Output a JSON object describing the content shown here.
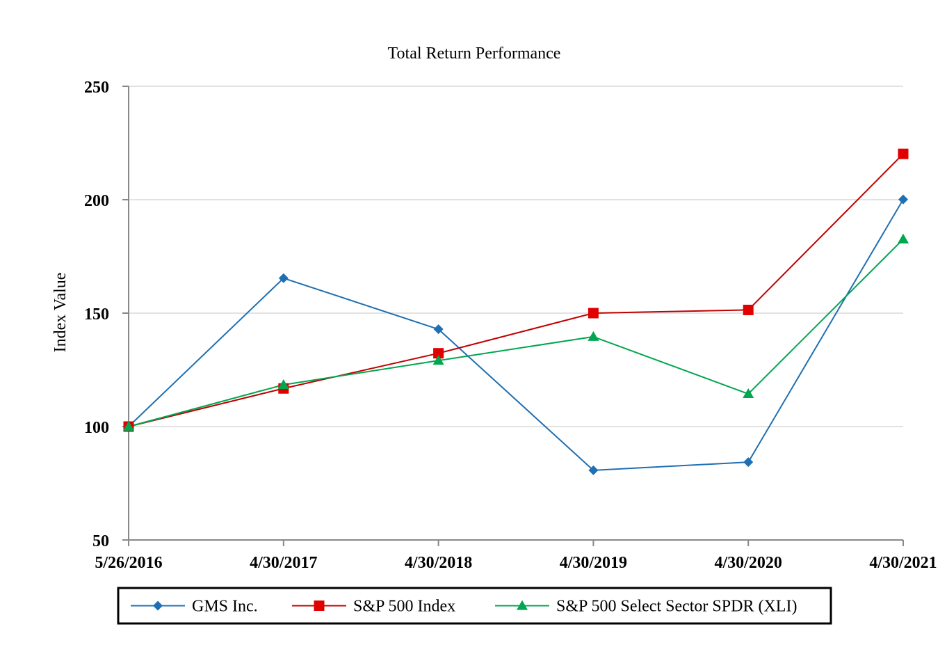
{
  "chart_data": {
    "type": "line",
    "title": "Total Return Performance",
    "xlabel": "",
    "ylabel": "Index Value",
    "categories": [
      "5/26/2016",
      "4/30/2017",
      "4/30/2018",
      "4/30/2019",
      "4/30/2020",
      "4/30/2021"
    ],
    "ylim": [
      50,
      250
    ],
    "yticks": [
      50,
      100,
      150,
      200,
      250
    ],
    "grid": true,
    "legend_position": "bottom",
    "series": [
      {
        "name": "GMS Inc.",
        "color": "#1f6fb2",
        "marker": "diamond",
        "values": [
          100,
          165.4,
          142.9,
          80.7,
          84.3,
          200.1
        ]
      },
      {
        "name": "S&P 500 Index",
        "color": "#e00000",
        "line_color": "#c00000",
        "marker": "square",
        "values": [
          100,
          116.8,
          132.3,
          150.0,
          151.4,
          220.2
        ]
      },
      {
        "name": "S&P 500 Select Sector SPDR (XLI)",
        "color": "#00a650",
        "line_color": "#00a650",
        "marker": "triangle",
        "values": [
          100,
          118.4,
          129.1,
          139.6,
          114.4,
          182.6
        ]
      }
    ]
  }
}
